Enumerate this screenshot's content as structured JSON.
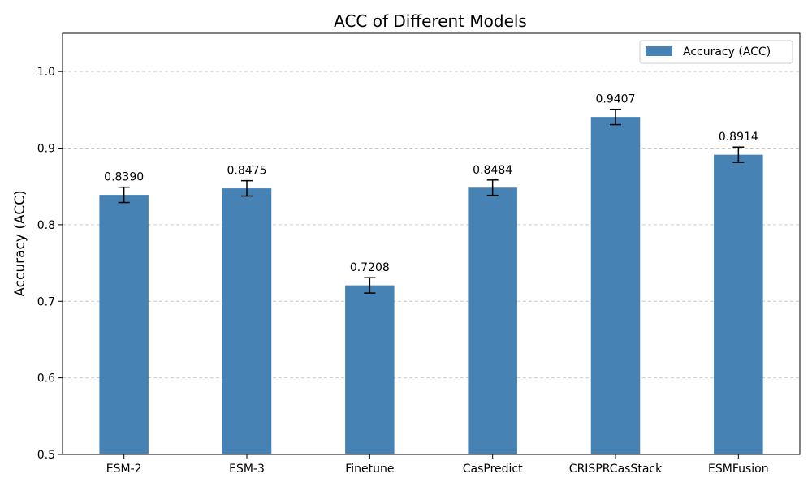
{
  "chart_data": {
    "type": "bar",
    "title": "ACC of Different Models",
    "xlabel": "",
    "ylabel": "Accuracy (ACC)",
    "categories": [
      "ESM-2",
      "ESM-3",
      "Finetune",
      "CasPredict",
      "CRISPRCasStack",
      "ESMFusion"
    ],
    "series": [
      {
        "name": "Accuracy (ACC)",
        "values": [
          0.839,
          0.8475,
          0.7208,
          0.8484,
          0.9407,
          0.8914
        ],
        "errors": [
          0.01,
          0.01,
          0.01,
          0.01,
          0.01,
          0.01
        ],
        "value_labels": [
          "0.8390",
          "0.8475",
          "0.7208",
          "0.8484",
          "0.9407",
          "0.8914"
        ],
        "color": "#4682b4"
      }
    ],
    "ylim": [
      0.5,
      1.05
    ],
    "yticks": [
      0.5,
      0.6,
      0.7,
      0.8,
      0.9,
      1.0
    ],
    "ytick_labels": [
      "0.5",
      "0.6",
      "0.7",
      "0.8",
      "0.9",
      "1.0"
    ],
    "grid": "y-dashed",
    "legend_position": "top-right",
    "grid_color": "#cccccc"
  }
}
